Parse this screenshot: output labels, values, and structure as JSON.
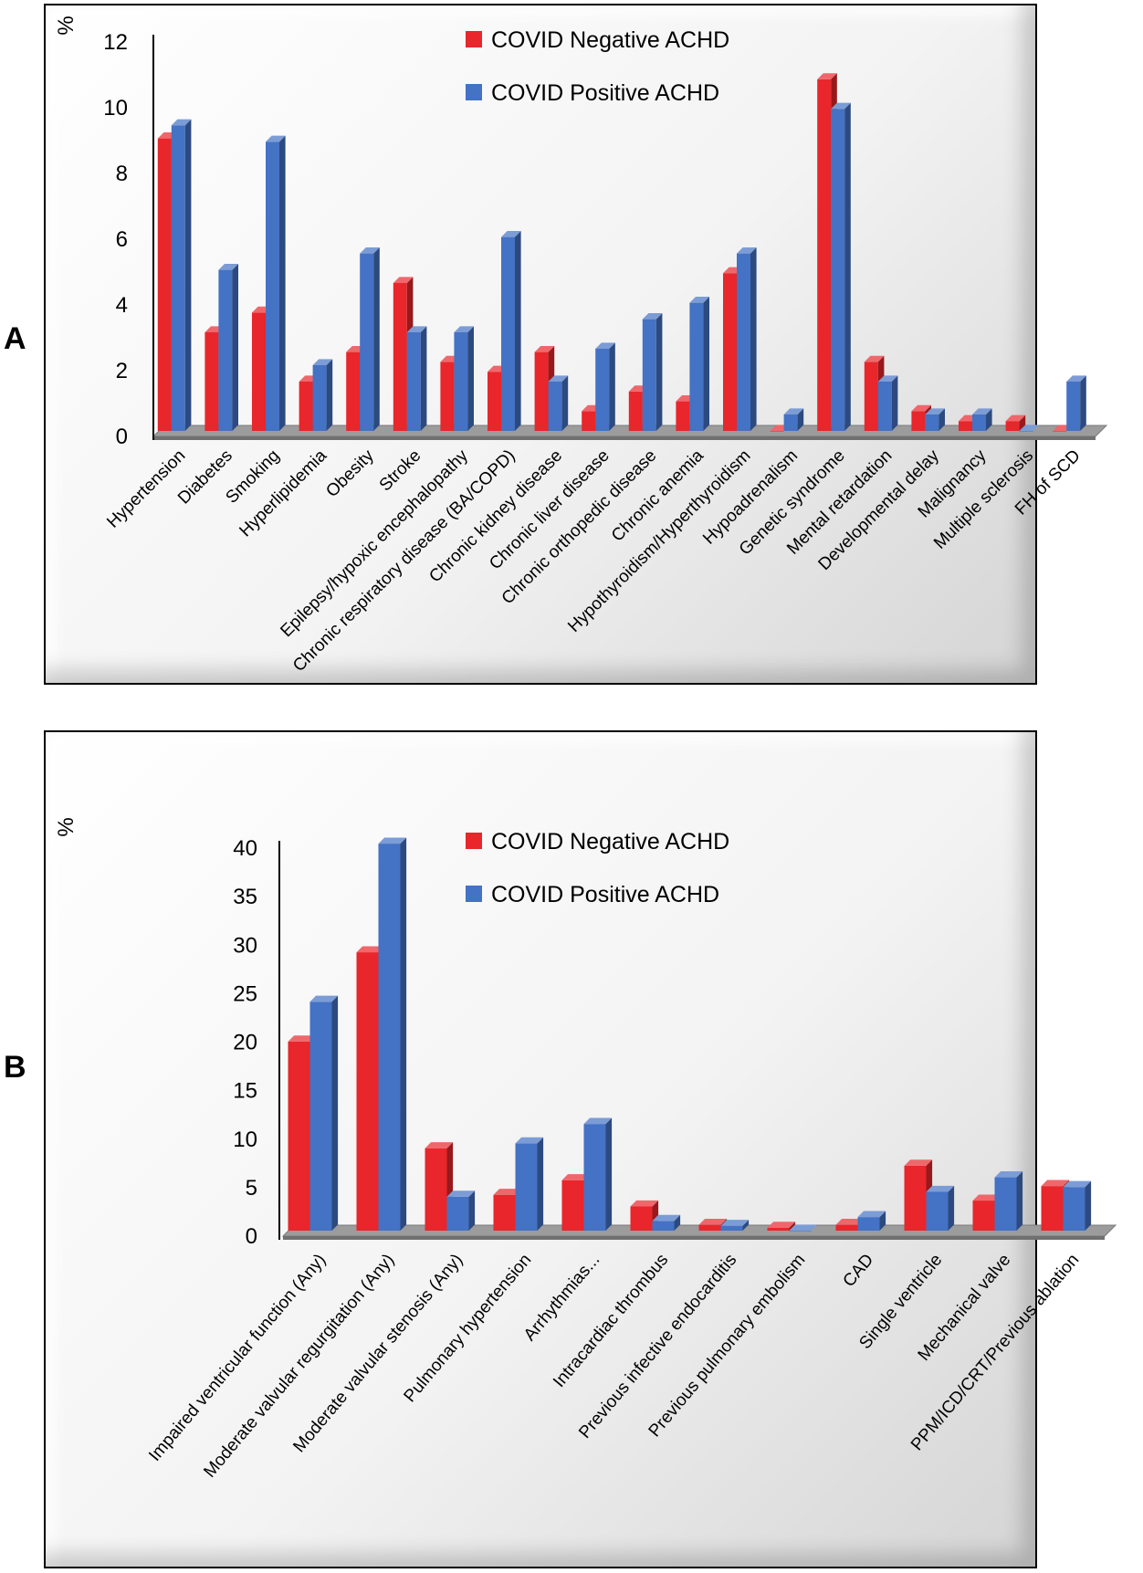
{
  "panels": [
    {
      "letter": "A",
      "unit": "%",
      "colors": {
        "negative": "#e8262b",
        "positive": "#4472c4"
      },
      "chart_data": {
        "type": "bar",
        "ylabel": "%",
        "ylim": [
          0,
          12
        ],
        "yticks": [
          0,
          2,
          4,
          6,
          8,
          10,
          12
        ],
        "legend": "top-center",
        "categories": [
          "Hypertension",
          "Diabetes",
          "Smoking",
          "Hyperlipidemia",
          "Obesity",
          "Stroke",
          "Epilepsy/hypoxic encephalopathy",
          "Chronic respiratory disease (BA/COPD)",
          "Chronic kidney disease",
          "Chronic liver disease",
          "Chronic orthopedic disease",
          "Chronic anemia",
          "Hypothyroidism/Hyperthyroidism",
          "Hypoadrenalism",
          "Genetic syndrome",
          "Mental retardation",
          "Developmental delay",
          "Malignancy",
          "Multiple sclerosis",
          "FH of SCD"
        ],
        "series": [
          {
            "name": "COVID Negative ACHD",
            "values": [
              8.9,
              3.0,
              3.6,
              1.5,
              2.4,
              4.5,
              2.1,
              1.8,
              2.4,
              0.6,
              1.2,
              0.9,
              4.8,
              0.0,
              10.7,
              2.1,
              0.6,
              0.3,
              0.3,
              0.0
            ]
          },
          {
            "name": "COVID Positive ACHD",
            "values": [
              9.3,
              4.9,
              8.8,
              2.0,
              5.4,
              3.0,
              3.0,
              5.9,
              1.5,
              2.5,
              3.4,
              3.9,
              5.4,
              0.5,
              9.8,
              1.5,
              0.5,
              0.5,
              0.0,
              1.5
            ]
          }
        ]
      }
    },
    {
      "letter": "B",
      "unit": "%",
      "colors": {
        "negative": "#e8262b",
        "positive": "#4472c4"
      },
      "chart_data": {
        "type": "bar",
        "ylabel": "%",
        "ylim": [
          0,
          40
        ],
        "yticks": [
          0,
          5,
          10,
          15,
          20,
          25,
          30,
          35,
          40
        ],
        "legend": "top-center",
        "categories": [
          "Impaired ventricular function (Any)",
          "Moderate valvular regurgitation (Any)",
          "Moderate valvular stenosis (Any)",
          "Pulmonary hypertension",
          "Arrhythmias...",
          "Intracardiac thrombus",
          "Previous infective endocarditis",
          "Previous pulmonary embolism",
          "CAD",
          "Single ventricle",
          "Mechanical valve",
          "PPM/ICD/CRT/Previous ablation"
        ],
        "series": [
          {
            "name": "COVID Negative ACHD",
            "values": [
              19.5,
              28.7,
              8.5,
              3.7,
              5.2,
              2.5,
              0.6,
              0.3,
              0.6,
              6.7,
              3.1,
              4.6
            ]
          },
          {
            "name": "COVID Positive ACHD",
            "values": [
              23.6,
              39.9,
              3.5,
              9.0,
              11.0,
              1.0,
              0.5,
              0.0,
              1.4,
              4.0,
              5.5,
              4.5
            ]
          }
        ]
      }
    }
  ]
}
